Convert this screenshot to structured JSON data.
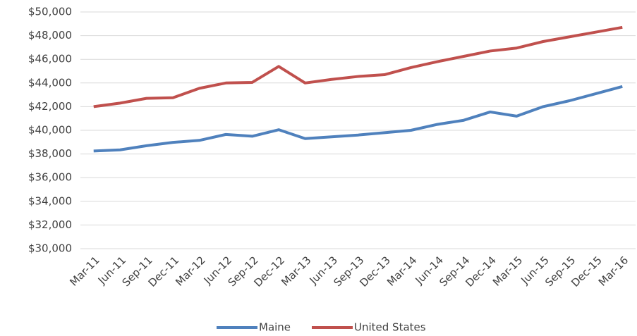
{
  "chart_data": {
    "type": "line",
    "categories": [
      "Mar-11",
      "Jun-11",
      "Sep-11",
      "Dec-11",
      "Mar-12",
      "Jun-12",
      "Sep-12",
      "Dec-12",
      "Mar-13",
      "Jun-13",
      "Sep-13",
      "Dec-13",
      "Mar-14",
      "Jun-14",
      "Sep-14",
      "Dec-14",
      "Mar-15",
      "Jun-15",
      "Sep-15",
      "Dec-15",
      "Mar-16"
    ],
    "series": [
      {
        "name": "Maine",
        "color": "#4f81bd",
        "values": [
          38250,
          38350,
          38700,
          38980,
          39150,
          39650,
          39500,
          40050,
          39300,
          39450,
          39600,
          39800,
          40000,
          40500,
          40850,
          41550,
          41200,
          42000,
          42500,
          43100,
          43700
        ]
      },
      {
        "name": "United States",
        "color": "#c0504d",
        "values": [
          42000,
          42300,
          42700,
          42750,
          43550,
          44000,
          44050,
          45400,
          44000,
          44300,
          44550,
          44700,
          45300,
          45800,
          46250,
          46700,
          46950,
          47500,
          47900,
          48300,
          48700
        ]
      }
    ],
    "ylim": [
      30000,
      50000
    ],
    "yticks": [
      {
        "value": 30000,
        "label": "$30,000"
      },
      {
        "value": 32000,
        "label": "$32,000"
      },
      {
        "value": 34000,
        "label": "$34,000"
      },
      {
        "value": 36000,
        "label": "$36,000"
      },
      {
        "value": 38000,
        "label": "$38,000"
      },
      {
        "value": 40000,
        "label": "$40,000"
      },
      {
        "value": 42000,
        "label": "$42,000"
      },
      {
        "value": 44000,
        "label": "$44,000"
      },
      {
        "value": 46000,
        "label": "$46,000"
      },
      {
        "value": 48000,
        "label": "$48,000"
      },
      {
        "value": 50000,
        "label": "$50,000"
      }
    ],
    "grid": true,
    "legend": "bottom"
  }
}
